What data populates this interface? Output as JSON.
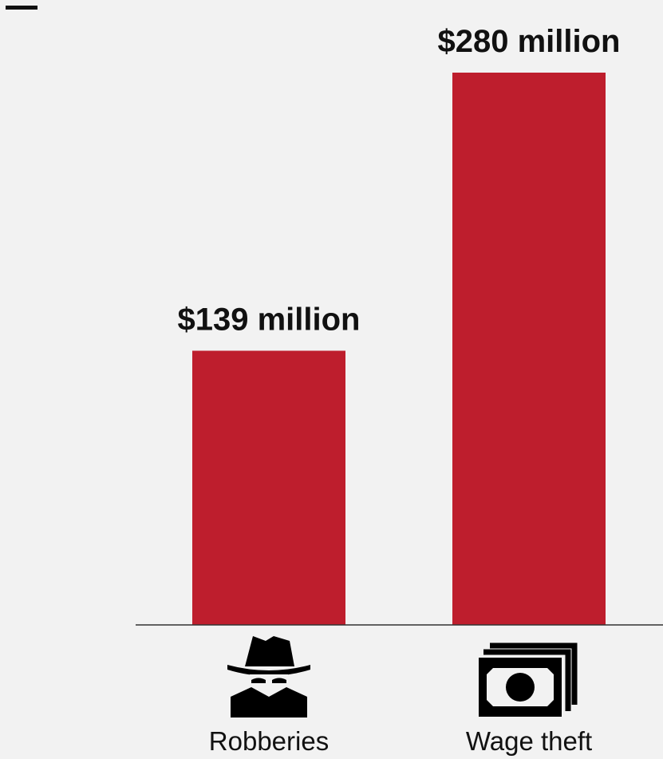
{
  "chart_data": {
    "type": "bar",
    "categories": [
      "Robberies",
      "Wage theft"
    ],
    "values": [
      139,
      280
    ],
    "data_labels": [
      "$139 million",
      "$280 million"
    ],
    "icons": [
      "burglar-icon",
      "cash-icon"
    ],
    "title": "",
    "xlabel": "",
    "ylabel": "",
    "ylim": [
      0,
      300
    ],
    "grid": false,
    "legend": "none",
    "colors": {
      "bar": "#be1e2d",
      "text": "#111111",
      "baseline": "#333333",
      "background": "#f2f2f2"
    }
  }
}
